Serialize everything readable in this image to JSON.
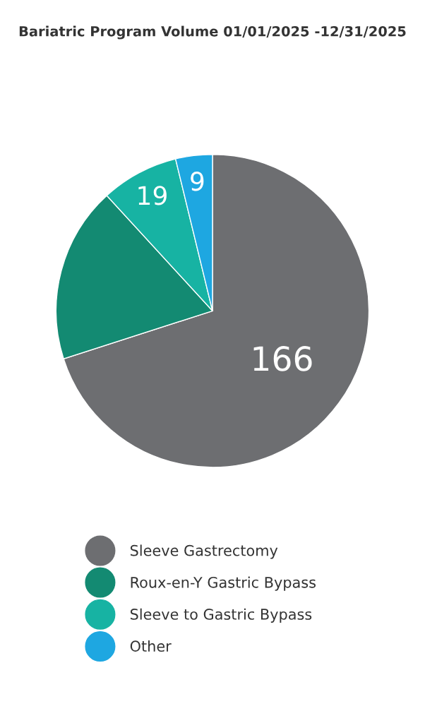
{
  "chart_data": {
    "type": "pie",
    "title": "Bariatric Program Volume 01/01/2025 -12/31/2025",
    "categories": [
      "Sleeve Gastrectomy",
      "Roux-en-Y Gastric Bypass",
      "Sleeve to Gastric Bypass",
      "Other"
    ],
    "values": [
      166,
      43,
      19,
      9
    ],
    "value_labels": [
      "166",
      null,
      "19",
      "9"
    ],
    "colors": [
      "#6d6e71",
      "#138a72",
      "#17b3a3",
      "#1ea7e1"
    ],
    "legend": "bottom"
  }
}
